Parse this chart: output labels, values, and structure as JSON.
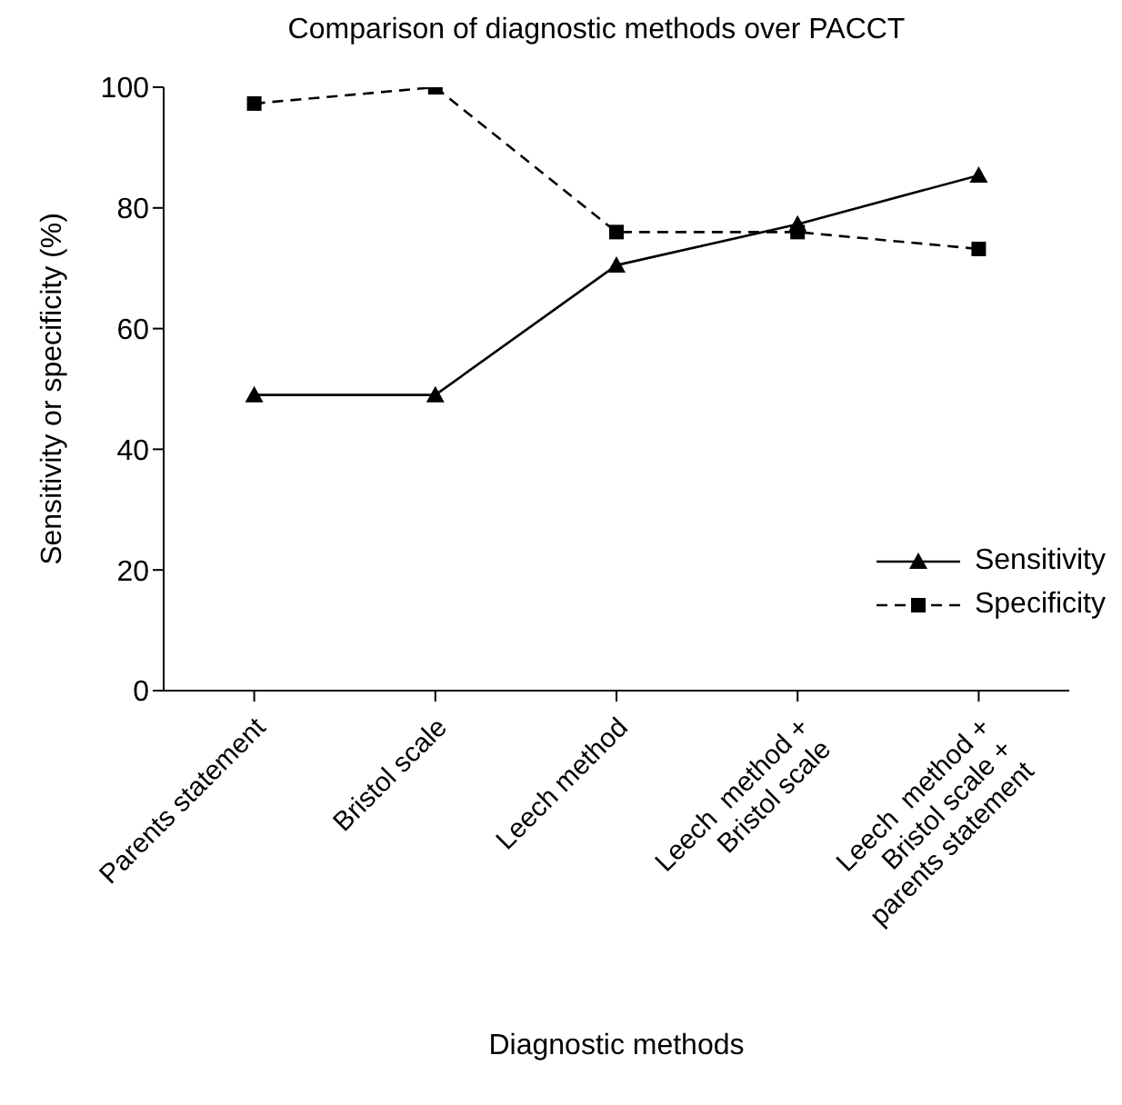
{
  "chart_data": {
    "type": "line",
    "title": "Comparison of diagnostic methods over PACCT",
    "xlabel": "Diagnostic methods",
    "ylabel": "Sensitivity or specificity (%)",
    "categories": [
      "Parents statement",
      "Bristol scale",
      "Leech method",
      "Leech  method +\nBristol scale",
      "Leech  method +\nBristol scale +\nparents statement"
    ],
    "series": [
      {
        "name": "Sensitivity",
        "color": "#000000",
        "marker": "triangle",
        "line_style": "solid",
        "values": [
          49,
          49,
          70.5,
          77.3,
          85.4
        ]
      },
      {
        "name": "Specificity",
        "color": "#000000",
        "marker": "square",
        "line_style": "dashed",
        "values": [
          97.3,
          100,
          76,
          76,
          73.2
        ]
      }
    ],
    "ylim": [
      0,
      100
    ],
    "yticks": [
      0,
      20,
      40,
      60,
      80,
      100
    ],
    "grid": false,
    "legend": "bottom right"
  }
}
